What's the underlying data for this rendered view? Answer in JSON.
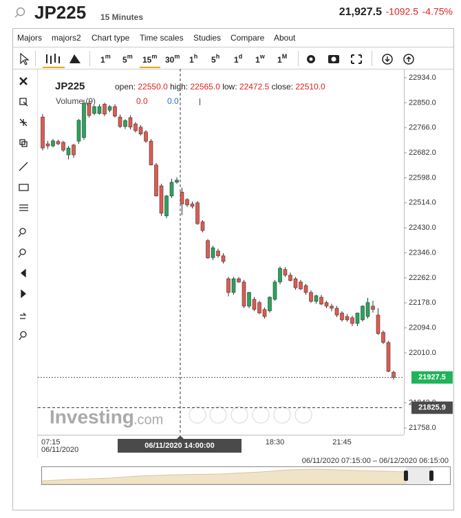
{
  "header": {
    "symbol": "JP225",
    "interval": "15 Minutes",
    "price": "21,927.5",
    "change": "-1092.5",
    "change_pct": "-4.75%"
  },
  "menu": [
    "Majors",
    "majors2",
    "Chart type",
    "Time scales",
    "Studies",
    "Compare",
    "About"
  ],
  "timeframes": [
    {
      "n": "1",
      "u": "m"
    },
    {
      "n": "5",
      "u": "m"
    },
    {
      "n": "15",
      "u": "m"
    },
    {
      "n": "30",
      "u": "m"
    },
    {
      "n": "1",
      "u": "h"
    },
    {
      "n": "5",
      "u": "h"
    },
    {
      "n": "1",
      "u": "d"
    },
    {
      "n": "1",
      "u": "w"
    },
    {
      "n": "1",
      "u": "M"
    }
  ],
  "legend": {
    "symbol": "JP225",
    "open_label": "open:",
    "open": "22550.0",
    "high_label": "high:",
    "high": "22565.0",
    "low_label": "low:",
    "low": "22472.5",
    "close_label": "close:",
    "close": "22510.0",
    "volume_label": "Volume (9)",
    "volume_a": "0.0",
    "volume_b": "0.0"
  },
  "watermark": {
    "brand": "Investing",
    "domain": ".com"
  },
  "navigator": {
    "range": "06/11/2020 07:15:00 – 06/12/2020 06:15:00"
  },
  "chart_data": {
    "type": "candlestick",
    "categories": [
      "07:15",
      null,
      null,
      null,
      null,
      null,
      null,
      null,
      null,
      null,
      null,
      null,
      null,
      null,
      null,
      null,
      null,
      null,
      null,
      null,
      null,
      null,
      null,
      null,
      null,
      null,
      null,
      null,
      null,
      null,
      null,
      null,
      null,
      null,
      null,
      null,
      null,
      null,
      null,
      null,
      null,
      null,
      null,
      null,
      null,
      "18:30",
      null,
      null,
      null,
      null,
      null,
      null,
      null,
      null,
      null,
      null,
      null,
      null,
      "21:45",
      null,
      null,
      null,
      null,
      null,
      null,
      null,
      null,
      null,
      null
    ],
    "first_date": "06/11/2020",
    "open": [
      22802,
      22712,
      22705,
      22720,
      22717,
      22675,
      22708,
      22721,
      22733,
      22849,
      22814,
      22814,
      22845,
      22825,
      22837,
      22802,
      22770,
      22800,
      22779,
      22768,
      22752,
      22721,
      22641,
      22571,
      22470,
      22537,
      22583,
      22550,
      22525,
      22510,
      22514,
      22450,
      22387,
      22330,
      22352,
      22336,
      22259,
      22213,
      22259,
      22248,
      22167,
      22190,
      22179,
      22156,
      22151,
      22190,
      22248,
      22290,
      22271,
      22259,
      22248,
      22236,
      22213,
      22183,
      22197,
      22179,
      22167,
      22160,
      22144,
      22132,
      22128,
      22109,
      22121,
      22132,
      22167,
      22137,
      22079,
      22045,
      21945
    ],
    "high": [
      22812,
      22722,
      22728,
      22726,
      22722,
      22705,
      22712,
      22795,
      22860,
      22856,
      22840,
      22845,
      22850,
      22842,
      22845,
      22810,
      22795,
      22808,
      22785,
      22775,
      22758,
      22728,
      22648,
      22578,
      22540,
      22595,
      22600,
      22565,
      22530,
      22518,
      22520,
      22456,
      22392,
      22370,
      22360,
      22345,
      22265,
      22265,
      22265,
      22255,
      22215,
      22198,
      22185,
      22162,
      22200,
      22255,
      22300,
      22298,
      22280,
      22265,
      22255,
      22242,
      22220,
      22205,
      22205,
      22185,
      22175,
      22168,
      22150,
      22140,
      22135,
      22140,
      22170,
      22195,
      22185,
      22160,
      22085,
      22050,
      21950
    ],
    "low": [
      22690,
      22695,
      22700,
      22708,
      22685,
      22660,
      22665,
      22712,
      22725,
      22800,
      22808,
      22810,
      22805,
      22818,
      22800,
      22765,
      22762,
      22760,
      22750,
      22740,
      22715,
      22640,
      22535,
      22470,
      22462,
      22530,
      22578,
      22472.5,
      22500,
      22495,
      22440,
      22415,
      22326,
      22322,
      22330,
      22310,
      22200,
      22205,
      22245,
      22160,
      22160,
      22150,
      22140,
      22125,
      22145,
      22185,
      22240,
      22265,
      22250,
      22222,
      22220,
      22205,
      22178,
      22175,
      22170,
      22160,
      22150,
      22130,
      22115,
      22115,
      22100,
      22100,
      22115,
      22125,
      22145,
      22070,
      22040,
      21945,
      21920
    ],
    "close": [
      22698,
      22705,
      22722,
      22712,
      22691,
      22698,
      22675,
      22791,
      22849,
      22807,
      22837,
      22837,
      22812,
      22837,
      22805,
      22770,
      22790,
      22768,
      22756,
      22745,
      22721,
      22641,
      22537,
      22479,
      22537,
      22583,
      22590,
      22510,
      22507,
      22502,
      22444,
      22421,
      22329,
      22363,
      22336,
      22317,
      22213,
      22259,
      22248,
      22167,
      22213,
      22156,
      22144,
      22132,
      22197,
      22248,
      22294,
      22271,
      22253,
      22229,
      22225,
      22213,
      22183,
      22202,
      22174,
      22167,
      22160,
      22137,
      22121,
      22121,
      22109,
      22144,
      22167,
      22179,
      22156,
      22075,
      22045,
      21948,
      21927.5
    ],
    "up_color": "#26a65b",
    "down_color": "#e05a50",
    "last_price": 21927.5,
    "crosshair_price": 21825.9,
    "crosshair_time": "06/11/2020 14:00:00",
    "ylim": [
      21735,
      22964
    ],
    "yticks": [
      {
        "value": 22934,
        "label": "22934.0"
      },
      {
        "value": 22850,
        "label": "22850.0"
      },
      {
        "value": 22766,
        "label": "22766.0"
      },
      {
        "value": 22682,
        "label": "22682.0"
      },
      {
        "value": 22598,
        "label": "22598.0"
      },
      {
        "value": 22514,
        "label": "22514.0"
      },
      {
        "value": 22430,
        "label": "22430.0"
      },
      {
        "value": 22346,
        "label": "22346.0"
      },
      {
        "value": 22262,
        "label": "22262.0"
      },
      {
        "value": 22178,
        "label": "22178.0"
      },
      {
        "value": 22094,
        "label": "22094.0"
      },
      {
        "value": 22010,
        "label": "22010.0"
      },
      {
        "value": 21842,
        "label": "21842.0"
      },
      {
        "value": 21758,
        "label": "21758.0"
      }
    ]
  }
}
